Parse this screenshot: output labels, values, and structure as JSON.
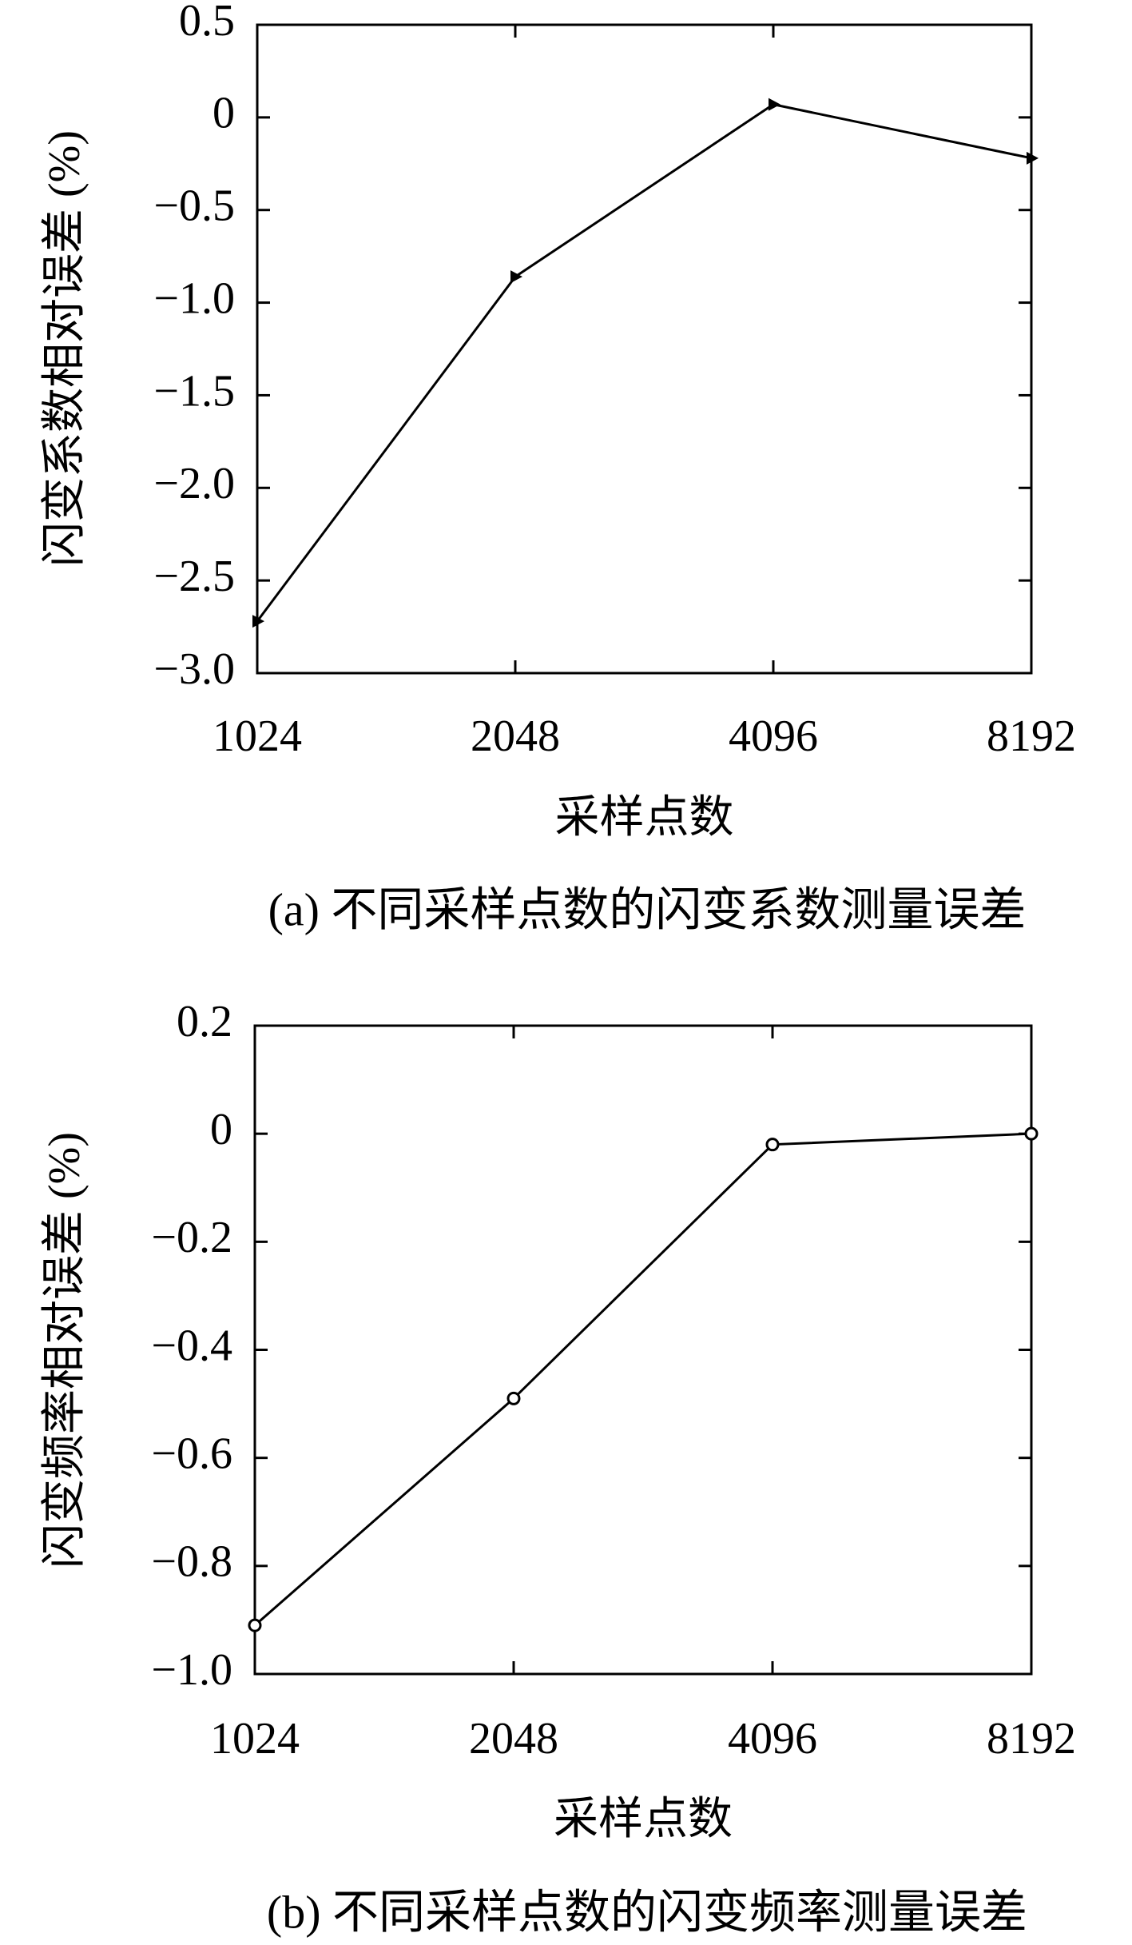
{
  "chart_data": [
    {
      "type": "line",
      "caption": "(a) 不同采样点数的闪变系数测量误差",
      "x_label": "采样点数",
      "y_label": "闪变系数相对误差 (%)",
      "categories": [
        "1024",
        "2048",
        "4096",
        "8192"
      ],
      "values": [
        -2.72,
        -0.86,
        0.07,
        -0.22
      ],
      "color": "#000000",
      "marker": "triangle",
      "ylim": [
        -3.0,
        0.5
      ],
      "yticks": [
        0.5,
        0,
        {
          "value": -0.5,
          "label": "−0.5"
        },
        {
          "value": -1.0,
          "label": "−1.0"
        },
        {
          "value": -1.5,
          "label": "−1.5"
        },
        {
          "value": -2.0,
          "label": "−2.0"
        },
        {
          "value": -2.5,
          "label": "−2.5"
        },
        {
          "value": -3.0,
          "label": "−3.0"
        }
      ],
      "grid": false
    },
    {
      "type": "line",
      "caption": "(b) 不同采样点数的闪变频率测量误差",
      "x_label": "采样点数",
      "y_label": "闪变频率相对误差 (%)",
      "categories": [
        "1024",
        "2048",
        "4096",
        "8192"
      ],
      "values": [
        -0.91,
        -0.49,
        -0.02,
        0.0
      ],
      "color": "#000000",
      "marker": "circle",
      "ylim": [
        -1.0,
        0.2
      ],
      "yticks": [
        0.2,
        0,
        {
          "value": -0.2,
          "label": "−0.2"
        },
        {
          "value": -0.4,
          "label": "−0.4"
        },
        {
          "value": -0.6,
          "label": "−0.6"
        },
        {
          "value": -0.8,
          "label": "−0.8"
        },
        {
          "value": -1.0,
          "label": "−1.0"
        }
      ],
      "grid": false
    }
  ]
}
